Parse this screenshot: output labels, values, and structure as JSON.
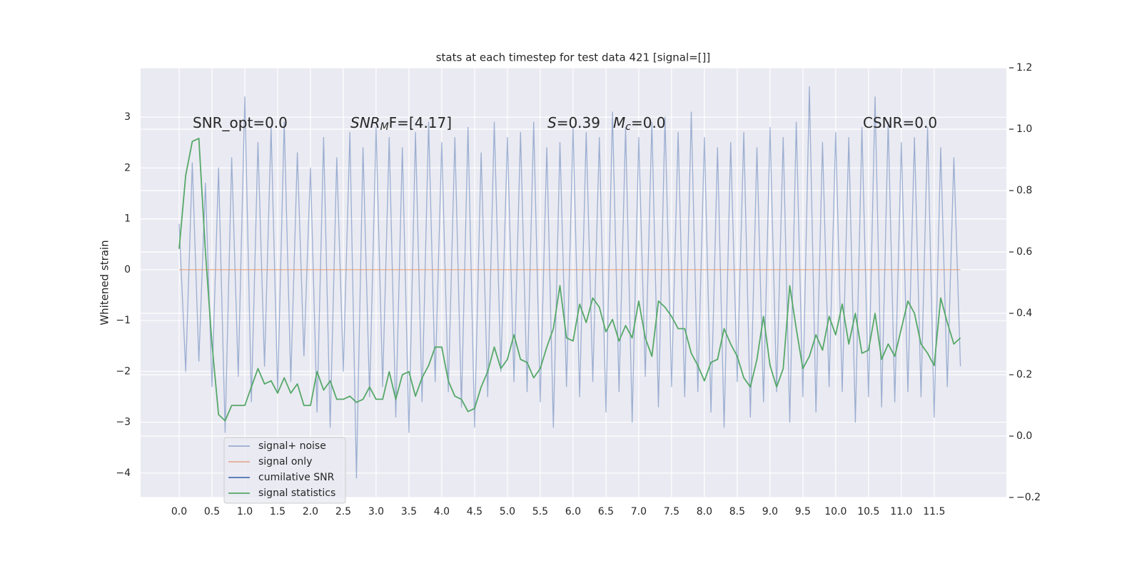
{
  "chart_data": {
    "type": "line",
    "title": "stats at each timestep for test data 421 [signal=[]]",
    "ylabel": "Whitened strain",
    "annotations": [
      {
        "rest": "SNR_opt=0.0"
      },
      {
        "base": "SNR",
        "sub": "M",
        "rest": "F=[4.17]"
      },
      {
        "base": "S",
        "rest": "=0.39"
      },
      {
        "base": "M",
        "sub": "c",
        "rest": "=0.0"
      },
      {
        "rest": "CSNR=0.0"
      }
    ],
    "x": [
      0,
      0.1,
      0.2,
      0.3,
      0.4,
      0.5,
      0.6,
      0.7,
      0.8,
      0.9,
      1,
      1.1,
      1.2,
      1.3,
      1.4,
      1.5,
      1.6,
      1.7,
      1.8,
      1.9,
      2,
      2.1,
      2.2,
      2.3,
      2.4,
      2.5,
      2.6,
      2.7,
      2.8,
      2.9,
      3,
      3.1,
      3.2,
      3.3,
      3.4,
      3.5,
      3.6,
      3.7,
      3.8,
      3.9,
      4,
      4.1,
      4.2,
      4.3,
      4.4,
      4.5,
      4.6,
      4.7,
      4.8,
      4.9,
      5,
      5.1,
      5.2,
      5.3,
      5.4,
      5.5,
      5.6,
      5.7,
      5.8,
      5.9,
      6,
      6.1,
      6.2,
      6.3,
      6.4,
      6.5,
      6.6,
      6.7,
      6.8,
      6.9,
      7,
      7.1,
      7.2,
      7.3,
      7.4,
      7.5,
      7.6,
      7.7,
      7.8,
      7.9,
      8,
      8.1,
      8.2,
      8.3,
      8.4,
      8.5,
      8.6,
      8.7,
      8.8,
      8.9,
      9,
      9.1,
      9.2,
      9.3,
      9.4,
      9.5,
      9.6,
      9.7,
      9.8,
      9.9,
      10,
      10.1,
      10.2,
      10.3,
      10.4,
      10.5,
      10.6,
      10.7,
      10.8,
      10.9,
      11,
      11.1,
      11.2,
      11.3,
      11.4,
      11.5,
      11.6,
      11.7,
      11.8,
      11.9
    ],
    "series": [
      {
        "name": "signal+ noise",
        "color": "#4c72b0",
        "values": [
          0.9,
          -2.0,
          2.1,
          -1.8,
          1.7,
          -2.3,
          2.0,
          -3.2,
          2.2,
          -2.1,
          3.4,
          -2.6,
          2.5,
          -1.9,
          2.8,
          -2.4,
          2.9,
          -2.2,
          2.3,
          -1.7,
          2.0,
          -2.8,
          2.6,
          -3.1,
          2.2,
          -2.0,
          2.7,
          -4.1,
          2.4,
          -2.5,
          2.8,
          -2.3,
          2.6,
          -2.9,
          2.4,
          -3.2,
          2.7,
          -2.6,
          2.9,
          -2.2,
          2.5,
          -2.4,
          2.6,
          -2.7,
          2.8,
          -3.1,
          2.3,
          -2.5,
          2.9,
          -2.0,
          2.6,
          -2.2,
          2.7,
          -2.4,
          2.9,
          -2.6,
          2.4,
          -3.1,
          2.5,
          -2.3,
          2.8,
          -2.5,
          2.7,
          -2.2,
          2.6,
          -2.8,
          3.1,
          -2.4,
          2.8,
          -3.0,
          2.6,
          -2.1,
          2.9,
          -2.7,
          3.0,
          -2.3,
          2.7,
          -2.5,
          3.1,
          -2.4,
          2.6,
          -2.8,
          2.4,
          -3.1,
          2.5,
          -2.2,
          2.7,
          -2.9,
          2.4,
          -2.6,
          2.8,
          -2.4,
          2.6,
          -3.0,
          2.9,
          -2.5,
          3.6,
          -2.8,
          2.5,
          -2.3,
          2.7,
          -2.4,
          2.6,
          -3.0,
          2.8,
          -2.5,
          3.4,
          -2.7,
          2.9,
          -2.6,
          2.5,
          -2.4,
          2.6,
          -2.5,
          2.8,
          -2.9,
          2.4,
          -2.3,
          2.2,
          -1.9
        ],
        "opacity": 0.5
      },
      {
        "name": "signal only",
        "color": "#dd8452",
        "values": [
          0,
          0,
          0,
          0,
          0,
          0,
          0,
          0,
          0,
          0,
          0,
          0,
          0,
          0,
          0,
          0,
          0,
          0,
          0,
          0,
          0,
          0,
          0,
          0,
          0,
          0,
          0,
          0,
          0,
          0,
          0,
          0,
          0,
          0,
          0,
          0,
          0,
          0,
          0,
          0,
          0,
          0,
          0,
          0,
          0,
          0,
          0,
          0,
          0,
          0,
          0,
          0,
          0,
          0,
          0,
          0,
          0,
          0,
          0,
          0,
          0,
          0,
          0,
          0,
          0,
          0,
          0,
          0,
          0,
          0,
          0,
          0,
          0,
          0,
          0,
          0,
          0,
          0,
          0,
          0,
          0,
          0,
          0,
          0,
          0,
          0,
          0,
          0,
          0,
          0,
          0,
          0,
          0,
          0,
          0,
          0,
          0,
          0,
          0,
          0,
          0,
          0,
          0,
          0,
          0,
          0,
          0,
          0,
          0,
          0,
          0,
          0,
          0,
          0,
          0,
          0,
          0,
          0,
          0,
          0
        ],
        "opacity": 0.6
      },
      {
        "name": "cumilative SNR",
        "color": "#4c72b0"
      },
      {
        "name": "signal statistics",
        "color": "#55a868",
        "axis": "y2",
        "values": [
          0.61,
          0.85,
          0.96,
          0.97,
          0.6,
          0.3,
          0.07,
          0.05,
          0.1,
          0.1,
          0.1,
          0.16,
          0.22,
          0.17,
          0.18,
          0.14,
          0.19,
          0.14,
          0.17,
          0.1,
          0.1,
          0.21,
          0.15,
          0.18,
          0.12,
          0.12,
          0.13,
          0.11,
          0.12,
          0.16,
          0.12,
          0.12,
          0.21,
          0.12,
          0.2,
          0.21,
          0.13,
          0.19,
          0.23,
          0.29,
          0.29,
          0.18,
          0.13,
          0.12,
          0.08,
          0.09,
          0.16,
          0.21,
          0.29,
          0.22,
          0.25,
          0.33,
          0.25,
          0.24,
          0.19,
          0.22,
          0.29,
          0.35,
          0.49,
          0.32,
          0.31,
          0.43,
          0.37,
          0.45,
          0.42,
          0.34,
          0.38,
          0.31,
          0.36,
          0.32,
          0.44,
          0.32,
          0.26,
          0.44,
          0.42,
          0.39,
          0.35,
          0.35,
          0.27,
          0.23,
          0.18,
          0.24,
          0.25,
          0.35,
          0.3,
          0.26,
          0.19,
          0.16,
          0.25,
          0.39,
          0.23,
          0.16,
          0.22,
          0.49,
          0.35,
          0.22,
          0.26,
          0.33,
          0.28,
          0.39,
          0.33,
          0.43,
          0.3,
          0.4,
          0.27,
          0.28,
          0.4,
          0.25,
          0.3,
          0.26,
          0.35,
          0.44,
          0.4,
          0.3,
          0.27,
          0.23,
          0.45,
          0.37,
          0.3,
          0.32
        ]
      }
    ],
    "xlim": [
      -0.587,
      12.6
    ],
    "xticks": [
      {
        "value": 0,
        "label": "0.0"
      },
      0.5,
      {
        "value": 1,
        "label": "1.0"
      },
      1.5,
      {
        "value": 2,
        "label": "2.0"
      },
      2.5,
      {
        "value": 3,
        "label": "3.0"
      },
      3.5,
      {
        "value": 4,
        "label": "4.0"
      },
      4.5,
      {
        "value": 5,
        "label": "5.0"
      },
      5.5,
      {
        "value": 6,
        "label": "6.0"
      },
      6.5,
      {
        "value": 7,
        "label": "7.0"
      },
      7.5,
      {
        "value": 8,
        "label": "8.0"
      },
      8.5,
      {
        "value": 9,
        "label": "9.0"
      },
      9.5,
      {
        "value": 10,
        "label": "10.0"
      },
      10.5,
      {
        "value": 11,
        "label": "11.0"
      },
      11.5
    ],
    "ylim": [
      -4.48,
      3.97
    ],
    "yticks": [
      {
        "value": -4,
        "label": "−4"
      },
      {
        "value": -3,
        "label": "−3"
      },
      {
        "value": -2,
        "label": "−2"
      },
      {
        "value": -1,
        "label": "−1"
      },
      0,
      1,
      2,
      3
    ],
    "y2lim": [
      -0.2,
      1.2
    ],
    "y2ticks": [
      {
        "value": -0.2,
        "label": "−0.2"
      },
      {
        "value": 0,
        "label": "0.0"
      },
      0.2,
      0.4,
      0.6,
      0.8,
      {
        "value": 1,
        "label": "1.0"
      },
      1.2
    ],
    "grid": true,
    "legend": "lower left"
  }
}
